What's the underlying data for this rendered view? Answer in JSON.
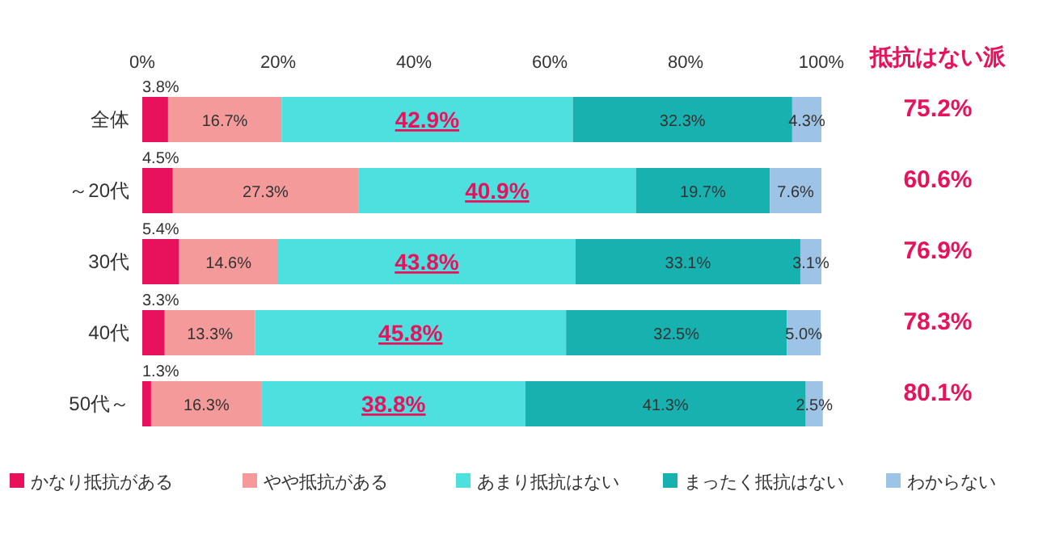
{
  "chart_data": {
    "type": "bar",
    "orientation": "horizontal",
    "stacked": true,
    "data_labels": true,
    "legend": "bottom",
    "grid": false,
    "categories": [
      "全体",
      "～20代",
      "30代",
      "40代",
      "50代～"
    ],
    "xlim": [
      0,
      100
    ],
    "xticks": [
      {
        "value": 0,
        "label": "0%"
      },
      {
        "value": 20,
        "label": "20%"
      },
      {
        "value": 40,
        "label": "40%"
      },
      {
        "value": 60,
        "label": "60%"
      },
      {
        "value": 80,
        "label": "80%"
      },
      {
        "value": 100,
        "label": "100%"
      }
    ],
    "series": [
      {
        "name": "かなり抵抗がある",
        "color": "#e8125c",
        "values": [
          3.8,
          4.5,
          5.4,
          3.3,
          1.3
        ],
        "value_labels": [
          "3.8%",
          "4.5%",
          "5.4%",
          "3.3%",
          "1.3%"
        ]
      },
      {
        "name": "やや抵抗がある",
        "color": "#f59a9a",
        "values": [
          16.7,
          27.3,
          14.6,
          13.3,
          16.3
        ],
        "value_labels": [
          "16.7%",
          "27.3%",
          "14.6%",
          "13.3%",
          "16.3%"
        ]
      },
      {
        "name": "あまり抵抗はない",
        "color": "#4de0df",
        "values": [
          42.9,
          40.9,
          43.8,
          45.8,
          38.8
        ],
        "value_labels": [
          "42.9%",
          "40.9%",
          "43.8%",
          "45.8%",
          "38.8%"
        ]
      },
      {
        "name": "まったく抵抗はない",
        "color": "#17b1b0",
        "values": [
          32.3,
          19.7,
          33.1,
          32.5,
          41.3
        ],
        "value_labels": [
          "32.3%",
          "19.7%",
          "33.1%",
          "32.5%",
          "41.3%"
        ]
      },
      {
        "name": "わからない",
        "color": "#9dc3e6",
        "values": [
          4.3,
          7.6,
          3.1,
          5.0,
          2.5
        ],
        "value_labels": [
          "4.3%",
          "7.6%",
          "3.1%",
          "5.0%",
          "2.5%"
        ]
      }
    ],
    "annotations": [
      "抵抗はない派",
      "75.2%",
      "60.6%",
      "76.9%",
      "78.3%",
      "80.1%"
    ]
  }
}
